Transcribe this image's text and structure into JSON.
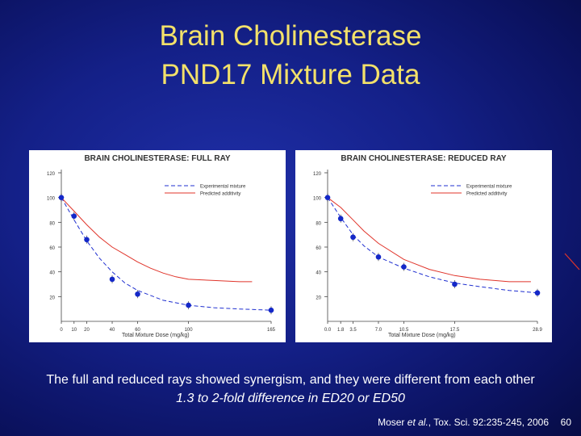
{
  "slide": {
    "title_line1": "Brain Cholinesterase",
    "title_line2": "PND17 Mixture Data",
    "caption_line1": "The full and reduced rays showed synergism, and they were different from each other",
    "caption_line2": "1.3 to 2-fold difference in ED20 or ED50",
    "citation_authors": "Moser ",
    "citation_etal": "et al.",
    "citation_rest": ", Tox. Sci. 92:235-245, 2006",
    "slide_number": "60"
  },
  "colors": {
    "experimental": "#1f2fd0",
    "predicted": "#e0342a",
    "point": "#1428c8"
  },
  "chart_data": [
    {
      "type": "scatter",
      "title": "BRAIN CHOLINESTERASE: FULL RAY",
      "xlabel": "Total Mixture Dose (mg/kg)",
      "ylabel": "",
      "xlim": [
        0,
        165
      ],
      "ylim": [
        0,
        120
      ],
      "yticks": [
        0,
        20,
        40,
        60,
        80,
        100,
        120
      ],
      "xticks": [
        0,
        10,
        20,
        40,
        60,
        100,
        165
      ],
      "xtick_labels": [
        "0",
        "10",
        "20",
        "40",
        "60",
        "100",
        "165"
      ],
      "legend": [
        "Experimental mixture",
        "Predicted additivity"
      ],
      "points": [
        {
          "x": 0,
          "y": 100
        },
        {
          "x": 10,
          "y": 85
        },
        {
          "x": 20,
          "y": 66
        },
        {
          "x": 40,
          "y": 34
        },
        {
          "x": 60,
          "y": 22
        },
        {
          "x": 100,
          "y": 13
        },
        {
          "x": 165,
          "y": 9
        }
      ],
      "series": [
        {
          "name": "Experimental mixture",
          "x": [
            0,
            10,
            20,
            30,
            40,
            50,
            60,
            80,
            100,
            120,
            140,
            165
          ],
          "values": [
            100,
            82,
            65,
            51,
            40,
            31,
            25,
            17,
            13,
            11,
            10,
            9
          ]
        },
        {
          "name": "Predicted additivity",
          "x": [
            0,
            10,
            20,
            30,
            40,
            50,
            60,
            70,
            80,
            90,
            100,
            120,
            140,
            150
          ],
          "values": [
            100,
            89,
            78,
            68,
            60,
            54,
            48,
            43,
            39,
            36,
            34,
            33,
            32,
            32
          ]
        }
      ]
    },
    {
      "type": "scatter",
      "title": "BRAIN CHOLINESTERASE: REDUCED RAY",
      "xlabel": "Total Mixture Dose (mg/kg)",
      "ylabel": "",
      "xlim": [
        0,
        28.9
      ],
      "ylim": [
        0,
        120
      ],
      "yticks": [
        0,
        20,
        40,
        60,
        80,
        100,
        120
      ],
      "xticks": [
        0,
        1.8,
        3.5,
        7.0,
        10.5,
        17.5,
        28.9
      ],
      "xtick_labels": [
        "0.0",
        "1.8",
        "3.5",
        "7.0",
        "10.5",
        "17.5",
        "28.9"
      ],
      "legend": [
        "Experimental mixture",
        "Predicted additivity"
      ],
      "points": [
        {
          "x": 0,
          "y": 100
        },
        {
          "x": 1.8,
          "y": 83
        },
        {
          "x": 3.5,
          "y": 68
        },
        {
          "x": 7.0,
          "y": 52
        },
        {
          "x": 10.5,
          "y": 44
        },
        {
          "x": 17.5,
          "y": 30
        },
        {
          "x": 28.9,
          "y": 23
        }
      ],
      "series": [
        {
          "name": "Experimental mixture",
          "x": [
            0,
            1.8,
            3.5,
            5,
            7,
            10.5,
            14,
            17.5,
            21,
            25,
            28.9
          ],
          "values": [
            100,
            84,
            70,
            61,
            52,
            43,
            36,
            31,
            28,
            25,
            23
          ]
        },
        {
          "name": "Predicted additivity",
          "x": [
            0,
            1.8,
            3.5,
            5,
            7,
            10.5,
            14,
            17.5,
            21,
            25,
            28
          ],
          "values": [
            100,
            92,
            82,
            73,
            63,
            50,
            42,
            37,
            34,
            32,
            32
          ]
        }
      ]
    }
  ]
}
